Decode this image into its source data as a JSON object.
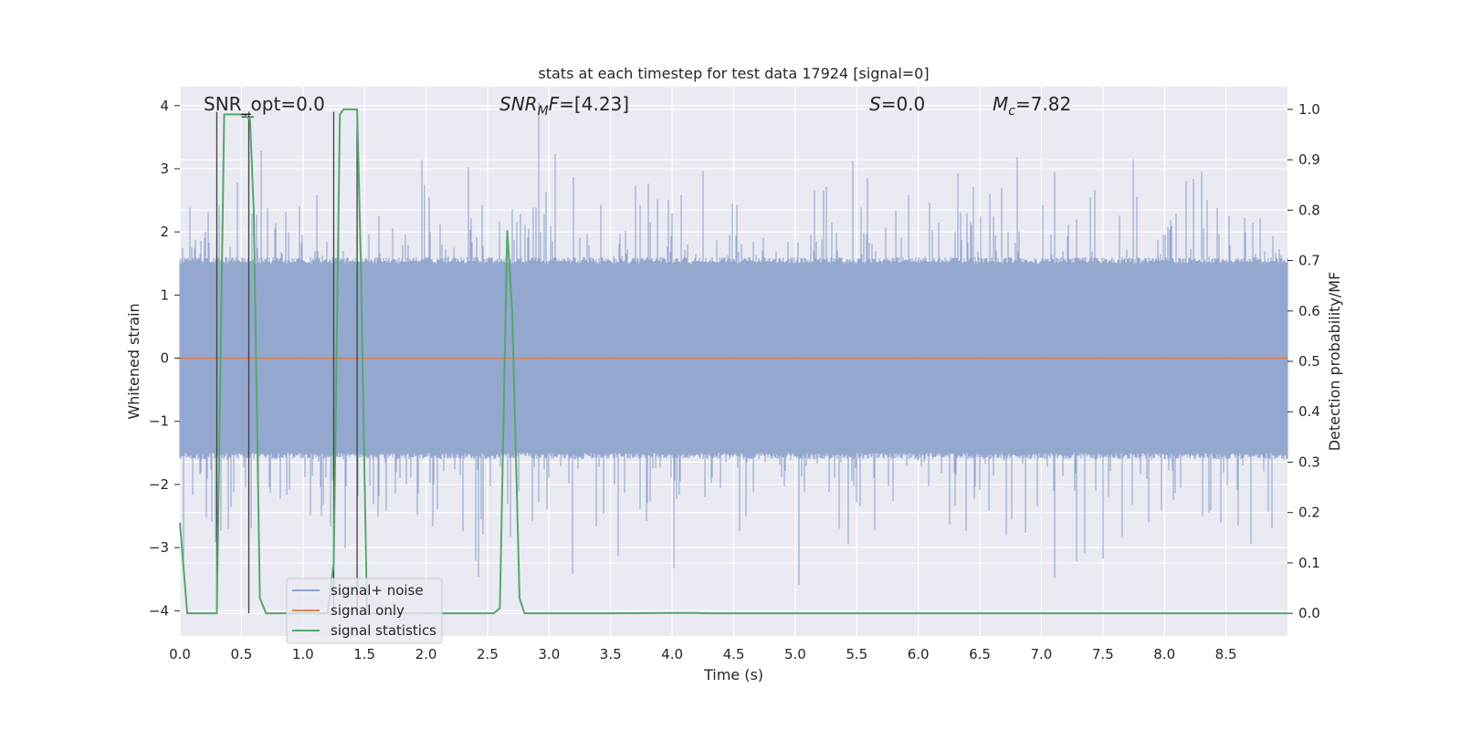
{
  "chart_data": {
    "type": "line",
    "title": "stats at each timestep for test data 17924 [signal=0]",
    "xlabel": "Time (s)",
    "ylabel": "Whitened strain",
    "y2label": "Detection probability/MF",
    "xlim": [
      0,
      9.0
    ],
    "ylim": [
      -4.4,
      4.3
    ],
    "y2lim": [
      -0.045,
      1.045
    ],
    "x_ticks": [
      "0.0",
      "0.5",
      "1.0",
      "1.5",
      "2.0",
      "2.5",
      "3.0",
      "3.5",
      "4.0",
      "4.5",
      "5.0",
      "5.5",
      "6.0",
      "6.5",
      "7.0",
      "7.5",
      "8.0",
      "8.5"
    ],
    "y_ticks": [
      "4",
      "3",
      "2",
      "1",
      "0",
      "−1",
      "−2",
      "−3",
      "−4"
    ],
    "y2_ticks": [
      "1.0",
      "0.9",
      "0.8",
      "0.7",
      "0.6",
      "0.5",
      "0.4",
      "0.3",
      "0.2",
      "0.1",
      "0.0"
    ],
    "grid": true,
    "legend_position": "lower-left",
    "annotations": {
      "snr_opt": "SNR_opt=0.0",
      "snr_mf_main": "SNR",
      "snr_mf_sub": "M",
      "snr_mf_rest": "F=[4.23]",
      "s_label": "S",
      "s_rest": "=0.0",
      "mc_main": "M",
      "mc_sub": "c",
      "mc_rest": "=7.82"
    },
    "series": [
      {
        "name": "signal+ noise",
        "color": "#8fa3cc",
        "axis": "left",
        "kind": "noise",
        "std": 1.0
      },
      {
        "name": "signal only",
        "color": "#dd8452",
        "axis": "left",
        "x": [
          0,
          9.0
        ],
        "y": [
          0,
          0
        ]
      },
      {
        "name": "signal statistics",
        "color": "#55a868",
        "axis": "right",
        "x": [
          0.0,
          0.06,
          0.1,
          0.15,
          0.2,
          0.3,
          0.36,
          0.42,
          0.5,
          0.52,
          0.57,
          0.6,
          0.65,
          0.7,
          0.8,
          1.0,
          1.2,
          1.25,
          1.3,
          1.33,
          1.38,
          1.44,
          1.47,
          1.52,
          1.6,
          2.0,
          2.55,
          2.6,
          2.66,
          2.7,
          2.76,
          2.8,
          3.5,
          4.17,
          4.3,
          9.0
        ],
        "y": [
          0.18,
          0.0,
          0.0,
          0.0,
          0.0,
          0.0,
          0.99,
          0.99,
          0.99,
          0.99,
          0.98,
          0.8,
          0.03,
          0.0,
          0.0,
          0.0,
          0.0,
          0.1,
          0.99,
          1.0,
          1.0,
          1.0,
          0.7,
          0.0,
          0.0,
          0.0,
          0.0,
          0.01,
          0.76,
          0.6,
          0.03,
          0.0,
          0.0,
          0.001,
          0.0,
          0.0
        ]
      },
      {
        "name": "",
        "color": "#3f3f3f",
        "axis": "right",
        "kind": "vlines",
        "x": [
          0.3,
          0.56,
          1.25,
          1.44
        ]
      }
    ],
    "colors": {
      "plot_bg": "#eaeaf2",
      "grid": "#ffffff",
      "noise": "#8fa3cc",
      "signal": "#dd8452",
      "stats": "#55a868",
      "markers": "#3f3f3f"
    }
  }
}
